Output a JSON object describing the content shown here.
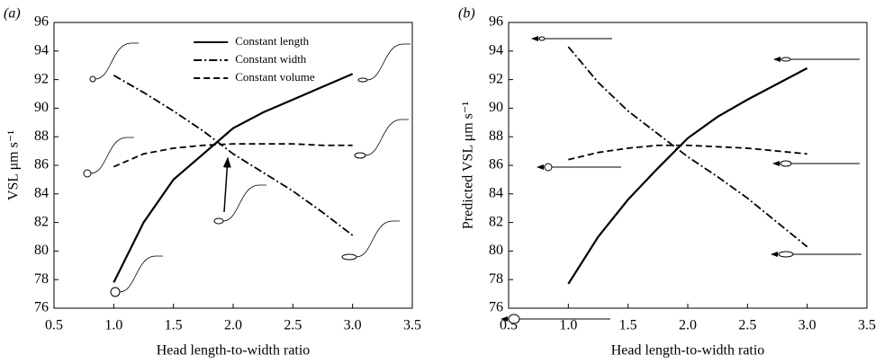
{
  "chart_data": [
    {
      "type": "line",
      "panel_label": "(a)",
      "ylabel": "VSL μm s⁻¹",
      "xlabel": "Head length-to-width ratio",
      "xlim": [
        0.5,
        3.5
      ],
      "ylim": [
        76,
        96
      ],
      "xticks": [
        0.5,
        {
          "value": 1,
          "label": "1.0"
        },
        1.5,
        {
          "value": 2,
          "label": "2.0"
        },
        2.5,
        {
          "value": 3,
          "label": "3.0"
        },
        3.5
      ],
      "yticks": [
        76,
        78,
        80,
        82,
        84,
        86,
        88,
        90,
        92,
        94,
        96
      ],
      "legend": "upper center",
      "x": [
        1.0,
        1.25,
        1.5,
        1.75,
        2.0,
        2.25,
        2.5,
        2.75,
        3.0
      ],
      "series": [
        {
          "name": "Constant length",
          "color": "#000000",
          "line_style": "solid",
          "values": [
            77.8,
            82.0,
            85.0,
            86.8,
            88.6,
            89.7,
            90.6,
            91.5,
            92.4
          ]
        },
        {
          "name": "Constant width",
          "color": "#000000",
          "line_style": "dashdot",
          "values": [
            92.3,
            91.1,
            89.8,
            88.4,
            86.8,
            85.5,
            84.2,
            82.7,
            81.1
          ]
        },
        {
          "name": "Constant volume",
          "color": "#000000",
          "line_style": "dash",
          "values": [
            85.9,
            86.8,
            87.2,
            87.4,
            87.5,
            87.5,
            87.5,
            87.4,
            87.4
          ]
        }
      ]
    },
    {
      "type": "line",
      "panel_label": "(b)",
      "ylabel": "Predicted VSL μm s⁻¹",
      "xlabel": "Head length-to-width ratio",
      "xlim": [
        0.5,
        3.5
      ],
      "ylim": [
        76,
        96
      ],
      "xticks": [
        0.5,
        {
          "value": 1,
          "label": "1.0"
        },
        1.5,
        {
          "value": 2,
          "label": "2.0"
        },
        2.5,
        {
          "value": 3,
          "label": "3.0"
        },
        3.5
      ],
      "yticks": [
        76,
        78,
        80,
        82,
        84,
        86,
        88,
        90,
        92,
        94,
        96
      ],
      "x": [
        1.0,
        1.25,
        1.5,
        1.75,
        2.0,
        2.25,
        2.5,
        2.75,
        3.0
      ],
      "series": [
        {
          "color": "#000000",
          "line_style": "solid",
          "values": [
            77.7,
            81.0,
            83.6,
            85.8,
            87.9,
            89.4,
            90.6,
            91.7,
            92.8
          ]
        },
        {
          "color": "#000000",
          "line_style": "dashdot",
          "values": [
            94.3,
            91.8,
            89.8,
            88.2,
            86.6,
            85.2,
            83.7,
            82.0,
            80.3
          ]
        },
        {
          "color": "#000000",
          "line_style": "dash",
          "values": [
            86.4,
            86.9,
            87.2,
            87.4,
            87.4,
            87.3,
            87.2,
            87.0,
            86.8
          ]
        }
      ]
    }
  ]
}
